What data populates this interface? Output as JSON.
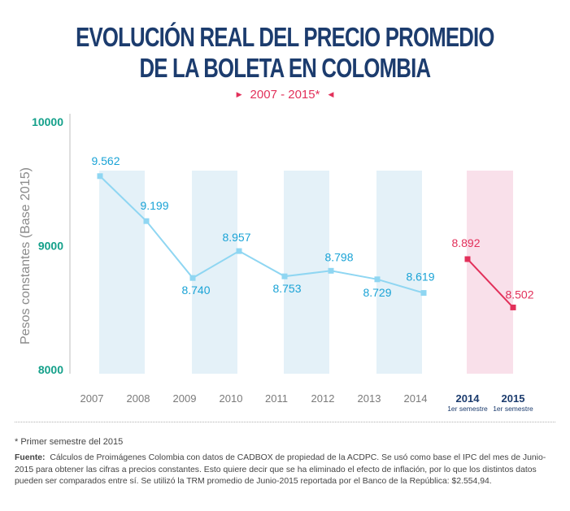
{
  "title_line1": "EVOLUCIÓN REAL DEL PRECIO PROMEDIO",
  "title_line2": "DE LA BOLETA EN COLOMBIA",
  "subtitle": "2007 - 2015*",
  "colors": {
    "title": "#1c3c6e",
    "accent": "#e2305a",
    "line": "#8fd6f2",
    "label": "#1aa3d6",
    "ytick": "#14a08a",
    "band_blue": "#e4f1f8",
    "band_pink": "#f9e0ea"
  },
  "chart_data": {
    "type": "line",
    "ylabel": "Pesos constantes (Base 2015)",
    "ylim": [
      8000,
      10000
    ],
    "yticks": [
      "10000",
      "9000",
      "8000"
    ],
    "grid": false,
    "categories": [
      "2007",
      "2008",
      "2009",
      "2010",
      "2011",
      "2012",
      "2013",
      "2014",
      "2014",
      "2015"
    ],
    "category_sublabels": [
      "",
      "",
      "",
      "",
      "",
      "",
      "",
      "",
      "1er semestre",
      "1er semestre"
    ],
    "series": [
      {
        "values": [
          9562,
          9199,
          8740,
          8957,
          8753,
          8798,
          8729,
          8619,
          null,
          null
        ],
        "labels": [
          "9.562",
          "9.199",
          "8.740",
          "8.957",
          "8.753",
          "8.798",
          "8.729",
          "8.619",
          "",
          ""
        ]
      },
      {
        "values": [
          null,
          null,
          null,
          null,
          null,
          null,
          null,
          null,
          8892,
          8502
        ],
        "labels": [
          "",
          "",
          "",
          "",
          "",
          "",
          "",
          "",
          "8.892",
          "8.502"
        ]
      }
    ]
  },
  "footnote": "* Primer semestre del 2015",
  "source_label": "Fuente:",
  "source_text": "Cálculos de Proimágenes Colombia con datos de CADBOX de propiedad de la ACDPC. Se usó como base el IPC del mes de Junio-2015 para obtener las cifras a precios constantes. Esto quiere decir que se ha eliminado el efecto de inflación, por lo que los distintos datos pueden ser comparados entre sí. Se utilizó la TRM promedio de Junio-2015 reportada por el Banco de la República: $2.554,94."
}
